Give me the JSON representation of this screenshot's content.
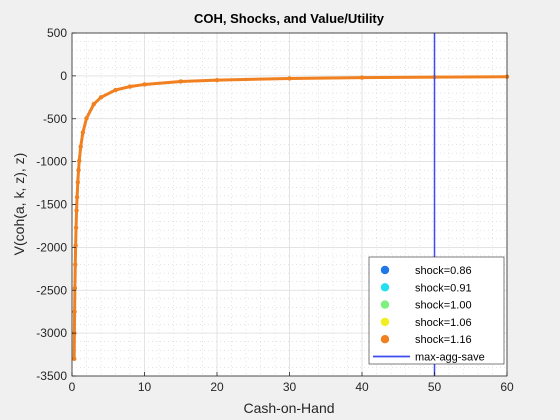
{
  "chart_data": {
    "type": "scatter",
    "title": "COH, Shocks, and Value/Utility",
    "xlabel": "Cash-on-Hand",
    "ylabel": "V(coh(a, k, z), z)",
    "xlim": [
      0,
      60
    ],
    "ylim": [
      -3500,
      500
    ],
    "xticks": [
      0,
      10,
      20,
      30,
      40,
      50,
      60
    ],
    "yticks": [
      500,
      0,
      -500,
      -1000,
      -1500,
      -2000,
      -2500,
      -3000,
      -3500
    ],
    "grid": "on (major + minor dotted)",
    "legend_position": "bottom-right",
    "series": [
      {
        "name": "shock=0.86",
        "color": "#1f77e8"
      },
      {
        "name": "shock=0.91",
        "color": "#22e0f0"
      },
      {
        "name": "shock=1.00",
        "color": "#7ef07e"
      },
      {
        "name": "shock=1.06",
        "color": "#f0f020"
      },
      {
        "name": "shock=1.16",
        "color": "#f08020",
        "x": [
          0.3,
          0.33,
          0.36,
          0.4,
          0.45,
          0.5,
          0.56,
          0.63,
          0.7,
          0.8,
          0.9,
          1.0,
          1.2,
          1.5,
          2,
          3,
          4,
          6,
          8,
          10,
          15,
          20,
          30,
          40,
          50,
          60
        ],
        "y": [
          -3300,
          -3000,
          -2750,
          -2475,
          -2200,
          -1980,
          -1770,
          -1570,
          -1415,
          -1240,
          -1100,
          -990,
          -825,
          -660,
          -495,
          -330,
          -250,
          -165,
          -125,
          -100,
          -65,
          -50,
          -30,
          -20,
          -14,
          -10
        ]
      }
    ],
    "vline": {
      "name": "max-agg-save",
      "x": 50,
      "color": "#3b4bf0"
    }
  }
}
